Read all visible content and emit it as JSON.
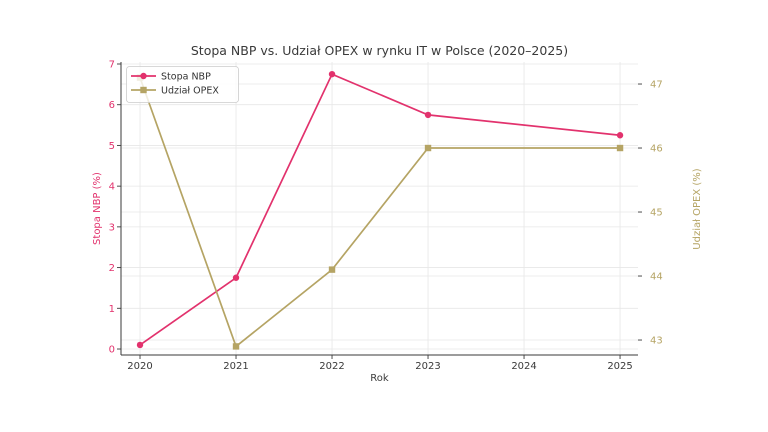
{
  "chart_data": {
    "type": "line",
    "title": "Stopa NBP vs. Udział OPEX w rynku IT w Polsce (2020–2025)",
    "xlabel": "Rok",
    "x_ticks": [
      2020,
      2021,
      2022,
      2023,
      2024,
      2025
    ],
    "x_range": [
      2019.802,
      2025.187
    ],
    "grid": true,
    "legend_position": "upper left",
    "background_color": "#ffffff",
    "grid_color": "#e7e7e7",
    "axis_color": "#3a3a3a",
    "text_color": "#3a3a3a",
    "left_axis": {
      "label": "Stopa NBP (%)",
      "color": "#e2326d",
      "ticks": [
        0,
        1,
        2,
        3,
        4,
        5,
        6,
        7
      ],
      "range": [
        -0.147,
        7.049
      ]
    },
    "right_axis": {
      "label": "Udział OPEX (%)",
      "color": "#b5a464",
      "ticks": [
        43,
        44,
        45,
        46,
        47
      ],
      "range": [
        42.766,
        47.344
      ]
    },
    "series": [
      {
        "name": "Stopa NBP",
        "axis": "left",
        "color": "#e2326d",
        "marker": "circle",
        "x": [
          2020,
          2021,
          2022,
          2023,
          2025
        ],
        "values": [
          0.1,
          1.75,
          6.75,
          5.75,
          5.25
        ]
      },
      {
        "name": "Udział OPEX",
        "axis": "right",
        "color": "#b5a464",
        "marker": "square",
        "x": [
          2020,
          2021,
          2022,
          2023,
          2025
        ],
        "values": [
          47.1,
          42.9,
          44.1,
          46.0,
          46.0
        ]
      }
    ],
    "legend": {
      "items": [
        "Stopa NBP",
        "Udział OPEX"
      ],
      "border_color": "#cccccc"
    }
  }
}
